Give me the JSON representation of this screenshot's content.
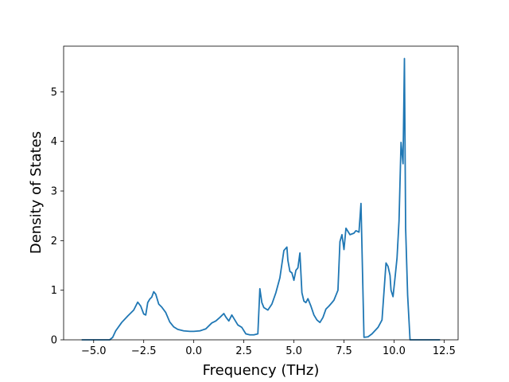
{
  "chart_data": {
    "type": "line",
    "title": "",
    "xlabel": "Frequency (THz)",
    "ylabel": "Density of States",
    "xlim": [
      -6.5,
      13.2
    ],
    "ylim": [
      0,
      5.92
    ],
    "xticks": [
      -5.0,
      -2.5,
      0.0,
      2.5,
      5.0,
      7.5,
      10.0,
      12.5
    ],
    "xtick_labels": [
      "−5.0",
      "−2.5",
      "0.0",
      "2.5",
      "5.0",
      "7.5",
      "10.0",
      "12.5"
    ],
    "yticks": [
      0,
      1,
      2,
      3,
      4,
      5
    ],
    "ytick_labels": [
      "0",
      "1",
      "2",
      "3",
      "4",
      "5"
    ],
    "grid": false,
    "legend": "none",
    "series": [
      {
        "color": "#1f77b4",
        "x": [
          -5.6,
          -4.2,
          -4.05,
          -3.9,
          -3.6,
          -3.3,
          -3.0,
          -2.8,
          -2.65,
          -2.5,
          -2.4,
          -2.3,
          -2.2,
          -2.1,
          -2.0,
          -1.9,
          -1.75,
          -1.6,
          -1.4,
          -1.2,
          -1.0,
          -0.8,
          -0.5,
          -0.2,
          0.0,
          0.3,
          0.6,
          0.9,
          1.0,
          1.1,
          1.3,
          1.5,
          1.6,
          1.75,
          1.9,
          2.05,
          2.2,
          2.4,
          2.6,
          2.8,
          3.0,
          3.2,
          3.3,
          3.4,
          3.5,
          3.7,
          3.9,
          4.1,
          4.3,
          4.5,
          4.65,
          4.7,
          4.8,
          4.9,
          5.0,
          5.1,
          5.2,
          5.3,
          5.4,
          5.5,
          5.6,
          5.7,
          5.85,
          6.0,
          6.15,
          6.3,
          6.45,
          6.6,
          6.75,
          6.9,
          7.0,
          7.1,
          7.2,
          7.3,
          7.4,
          7.5,
          7.6,
          7.8,
          8.0,
          8.1,
          8.25,
          8.35,
          8.5,
          8.7,
          8.9,
          9.2,
          9.4,
          9.6,
          9.7,
          9.8,
          9.85,
          9.95,
          10.05,
          10.15,
          10.25,
          10.35,
          10.45,
          10.52,
          10.58,
          10.68,
          10.8,
          11.0,
          12.3
        ],
        "y": [
          0.0,
          0.0,
          0.05,
          0.18,
          0.35,
          0.48,
          0.6,
          0.76,
          0.68,
          0.52,
          0.5,
          0.75,
          0.82,
          0.86,
          0.97,
          0.92,
          0.72,
          0.66,
          0.55,
          0.36,
          0.26,
          0.21,
          0.18,
          0.17,
          0.17,
          0.18,
          0.22,
          0.34,
          0.36,
          0.38,
          0.45,
          0.53,
          0.46,
          0.38,
          0.5,
          0.4,
          0.3,
          0.25,
          0.12,
          0.1,
          0.1,
          0.12,
          1.03,
          0.75,
          0.65,
          0.6,
          0.72,
          0.95,
          1.25,
          1.8,
          1.87,
          1.6,
          1.38,
          1.35,
          1.2,
          1.4,
          1.45,
          1.75,
          0.95,
          0.78,
          0.75,
          0.83,
          0.68,
          0.5,
          0.4,
          0.35,
          0.45,
          0.62,
          0.68,
          0.75,
          0.8,
          0.9,
          1.0,
          1.98,
          2.12,
          1.82,
          2.25,
          2.12,
          2.15,
          2.2,
          2.17,
          2.75,
          0.05,
          0.06,
          0.12,
          0.25,
          0.4,
          1.55,
          1.48,
          1.3,
          1.0,
          0.87,
          1.25,
          1.65,
          2.4,
          3.98,
          3.55,
          5.67,
          2.25,
          0.9,
          0.0,
          0.0,
          0.0
        ]
      }
    ]
  }
}
